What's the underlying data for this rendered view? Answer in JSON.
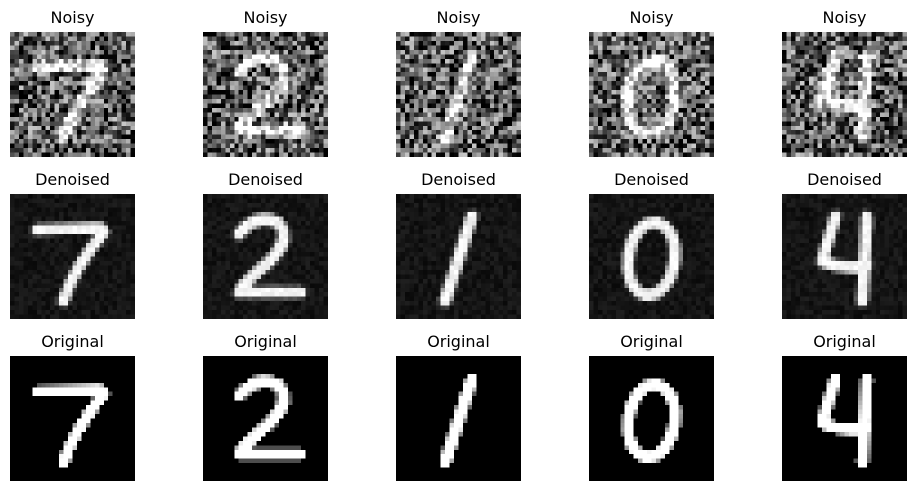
{
  "row_titles": [
    "Noisy",
    "Denoised",
    "Original"
  ],
  "digits": [
    "7",
    "2",
    "1",
    "0",
    "4"
  ],
  "render": {
    "noisy_noise": 0.55,
    "denoised_noise": 0.09,
    "original_noise": 0.0
  }
}
